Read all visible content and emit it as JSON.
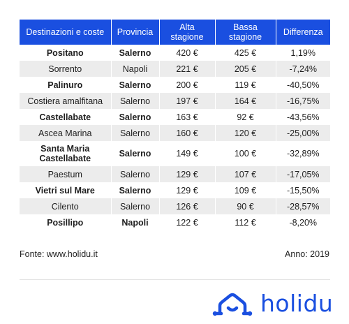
{
  "table": {
    "headers": [
      "Destinazioni e coste",
      "Provincia",
      "Alta stagione",
      "Bassa stagione",
      "Differenza"
    ],
    "rows": [
      [
        "Positano",
        "Salerno",
        "420 €",
        "425 €",
        "1,19%"
      ],
      [
        "Sorrento",
        "Napoli",
        "221 €",
        "205 €",
        "-7,24%"
      ],
      [
        "Palinuro",
        "Salerno",
        "200 €",
        "119 €",
        "-40,50%"
      ],
      [
        "Costiera amalfitana",
        "Salerno",
        "197 €",
        "164 €",
        "-16,75%"
      ],
      [
        "Castellabate",
        "Salerno",
        "163 €",
        "92 €",
        "-43,56%"
      ],
      [
        "Ascea Marina",
        "Salerno",
        "160 €",
        "120 €",
        "-25,00%"
      ],
      [
        "Santa Maria Castellabate",
        "Salerno",
        "149 €",
        "100 €",
        "-32,89%"
      ],
      [
        "Paestum",
        "Salerno",
        "129 €",
        "107 €",
        "-17,05%"
      ],
      [
        "Vietri sul Mare",
        "Salerno",
        "129 €",
        "109 €",
        "-15,50%"
      ],
      [
        "Cilento",
        "Salerno",
        "126 €",
        "90 €",
        "-28,57%"
      ],
      [
        "Posillipo",
        "Napoli",
        "122 €",
        "112 €",
        "-8,20%"
      ]
    ]
  },
  "footer": {
    "source": "Fonte: www.holidu.it",
    "year": "Anno: 2019"
  },
  "brand": {
    "name": "holidu",
    "logo_icon": "house-icon",
    "color": "#1a4fe0"
  },
  "colors": {
    "header_bg": "#1a4fe0",
    "row_alt_bg": "#ececec"
  }
}
